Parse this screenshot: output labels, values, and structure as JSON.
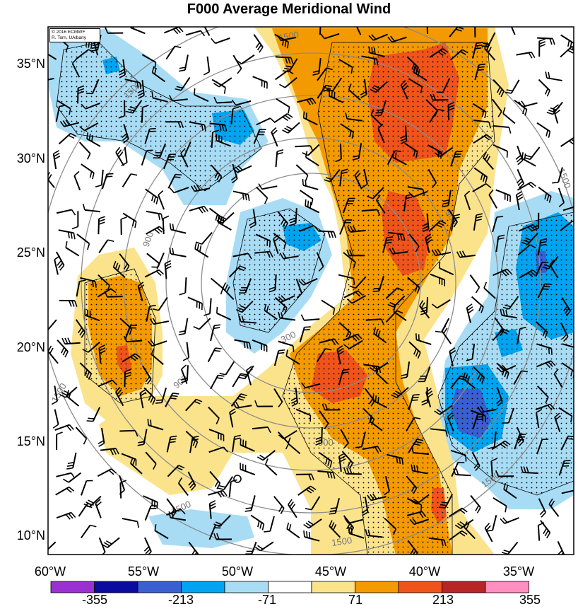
{
  "title": "F000 Average Meridional Wind",
  "credit": {
    "line1": "© 2016 ECMWF",
    "line2": "R. Torn, UAlbany"
  },
  "latitude_labels": [
    "35°N",
    "30°N",
    "25°N",
    "20°N",
    "15°N",
    "10°N"
  ],
  "longitude_labels": [
    "60°W",
    "55°W",
    "50°W",
    "45°W",
    "40°W",
    "35°W"
  ],
  "range_ring_labels": [
    "300",
    "900",
    "1500"
  ],
  "colorbar": {
    "tick_labels": [
      "-355",
      "-213",
      "-71",
      "71",
      "213",
      "355"
    ],
    "colors": [
      "#9b30d0",
      "#0b0b9e",
      "#3a5fd1",
      "#00a4f0",
      "#a8dcf5",
      "#ffffff",
      "#fbe38c",
      "#f39a00",
      "#f0541b",
      "#b82525",
      "#ff8fc0"
    ]
  },
  "map_extent": {
    "lon_range": [
      -60,
      -32
    ],
    "lat_range": [
      9,
      37
    ]
  },
  "colors": {
    "ring": "#8c8c8c",
    "barb": "#000000",
    "background": "#ffffff"
  }
}
